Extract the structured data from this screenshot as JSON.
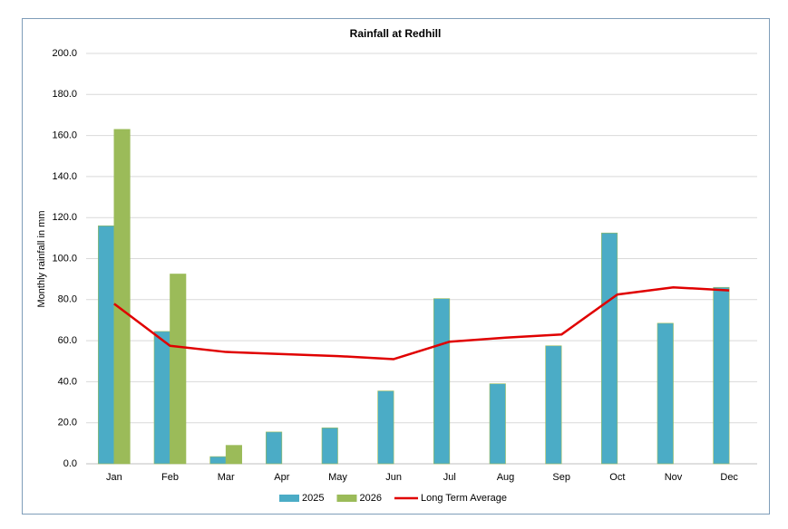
{
  "chart_data": {
    "type": "bar",
    "title": "Rainfall at Redhill",
    "y_label": "Monthly rainfall in mm",
    "categories": [
      "Jan",
      "Feb",
      "Mar",
      "Apr",
      "May",
      "Jun",
      "Jul",
      "Aug",
      "Sep",
      "Oct",
      "Nov",
      "Dec"
    ],
    "series": [
      {
        "name": "2025",
        "type": "bar",
        "color": "#4bacc6",
        "values": [
          116,
          64.5,
          3.5,
          15.5,
          17.5,
          35.5,
          80.5,
          39,
          57.5,
          112.5,
          68.5,
          86
        ]
      },
      {
        "name": "2026",
        "type": "bar",
        "color": "#9bbb59",
        "values": [
          163,
          92.5,
          9,
          null,
          null,
          null,
          null,
          null,
          null,
          null,
          null,
          null
        ]
      },
      {
        "name": "Long Term Average",
        "type": "line",
        "color": "#e00000",
        "values": [
          78,
          57.5,
          54.5,
          53.5,
          52.5,
          51,
          59.5,
          61.5,
          63,
          82.5,
          86,
          84.5
        ]
      }
    ],
    "ylim": [
      0,
      200
    ],
    "yticks": [
      {
        "value": 0,
        "label": "0.0"
      },
      {
        "value": 20,
        "label": "20.0"
      },
      {
        "value": 40,
        "label": "40.0"
      },
      {
        "value": 60,
        "label": "60.0"
      },
      {
        "value": 80,
        "label": "80.0"
      },
      {
        "value": 100,
        "label": "100.0"
      },
      {
        "value": 120,
        "label": "120.0"
      },
      {
        "value": 140,
        "label": "140.0"
      },
      {
        "value": 160,
        "label": "160.0"
      },
      {
        "value": 180,
        "label": "180.0"
      },
      {
        "value": 200,
        "label": "200.0"
      }
    ],
    "grid": true,
    "legend": "bottom"
  }
}
